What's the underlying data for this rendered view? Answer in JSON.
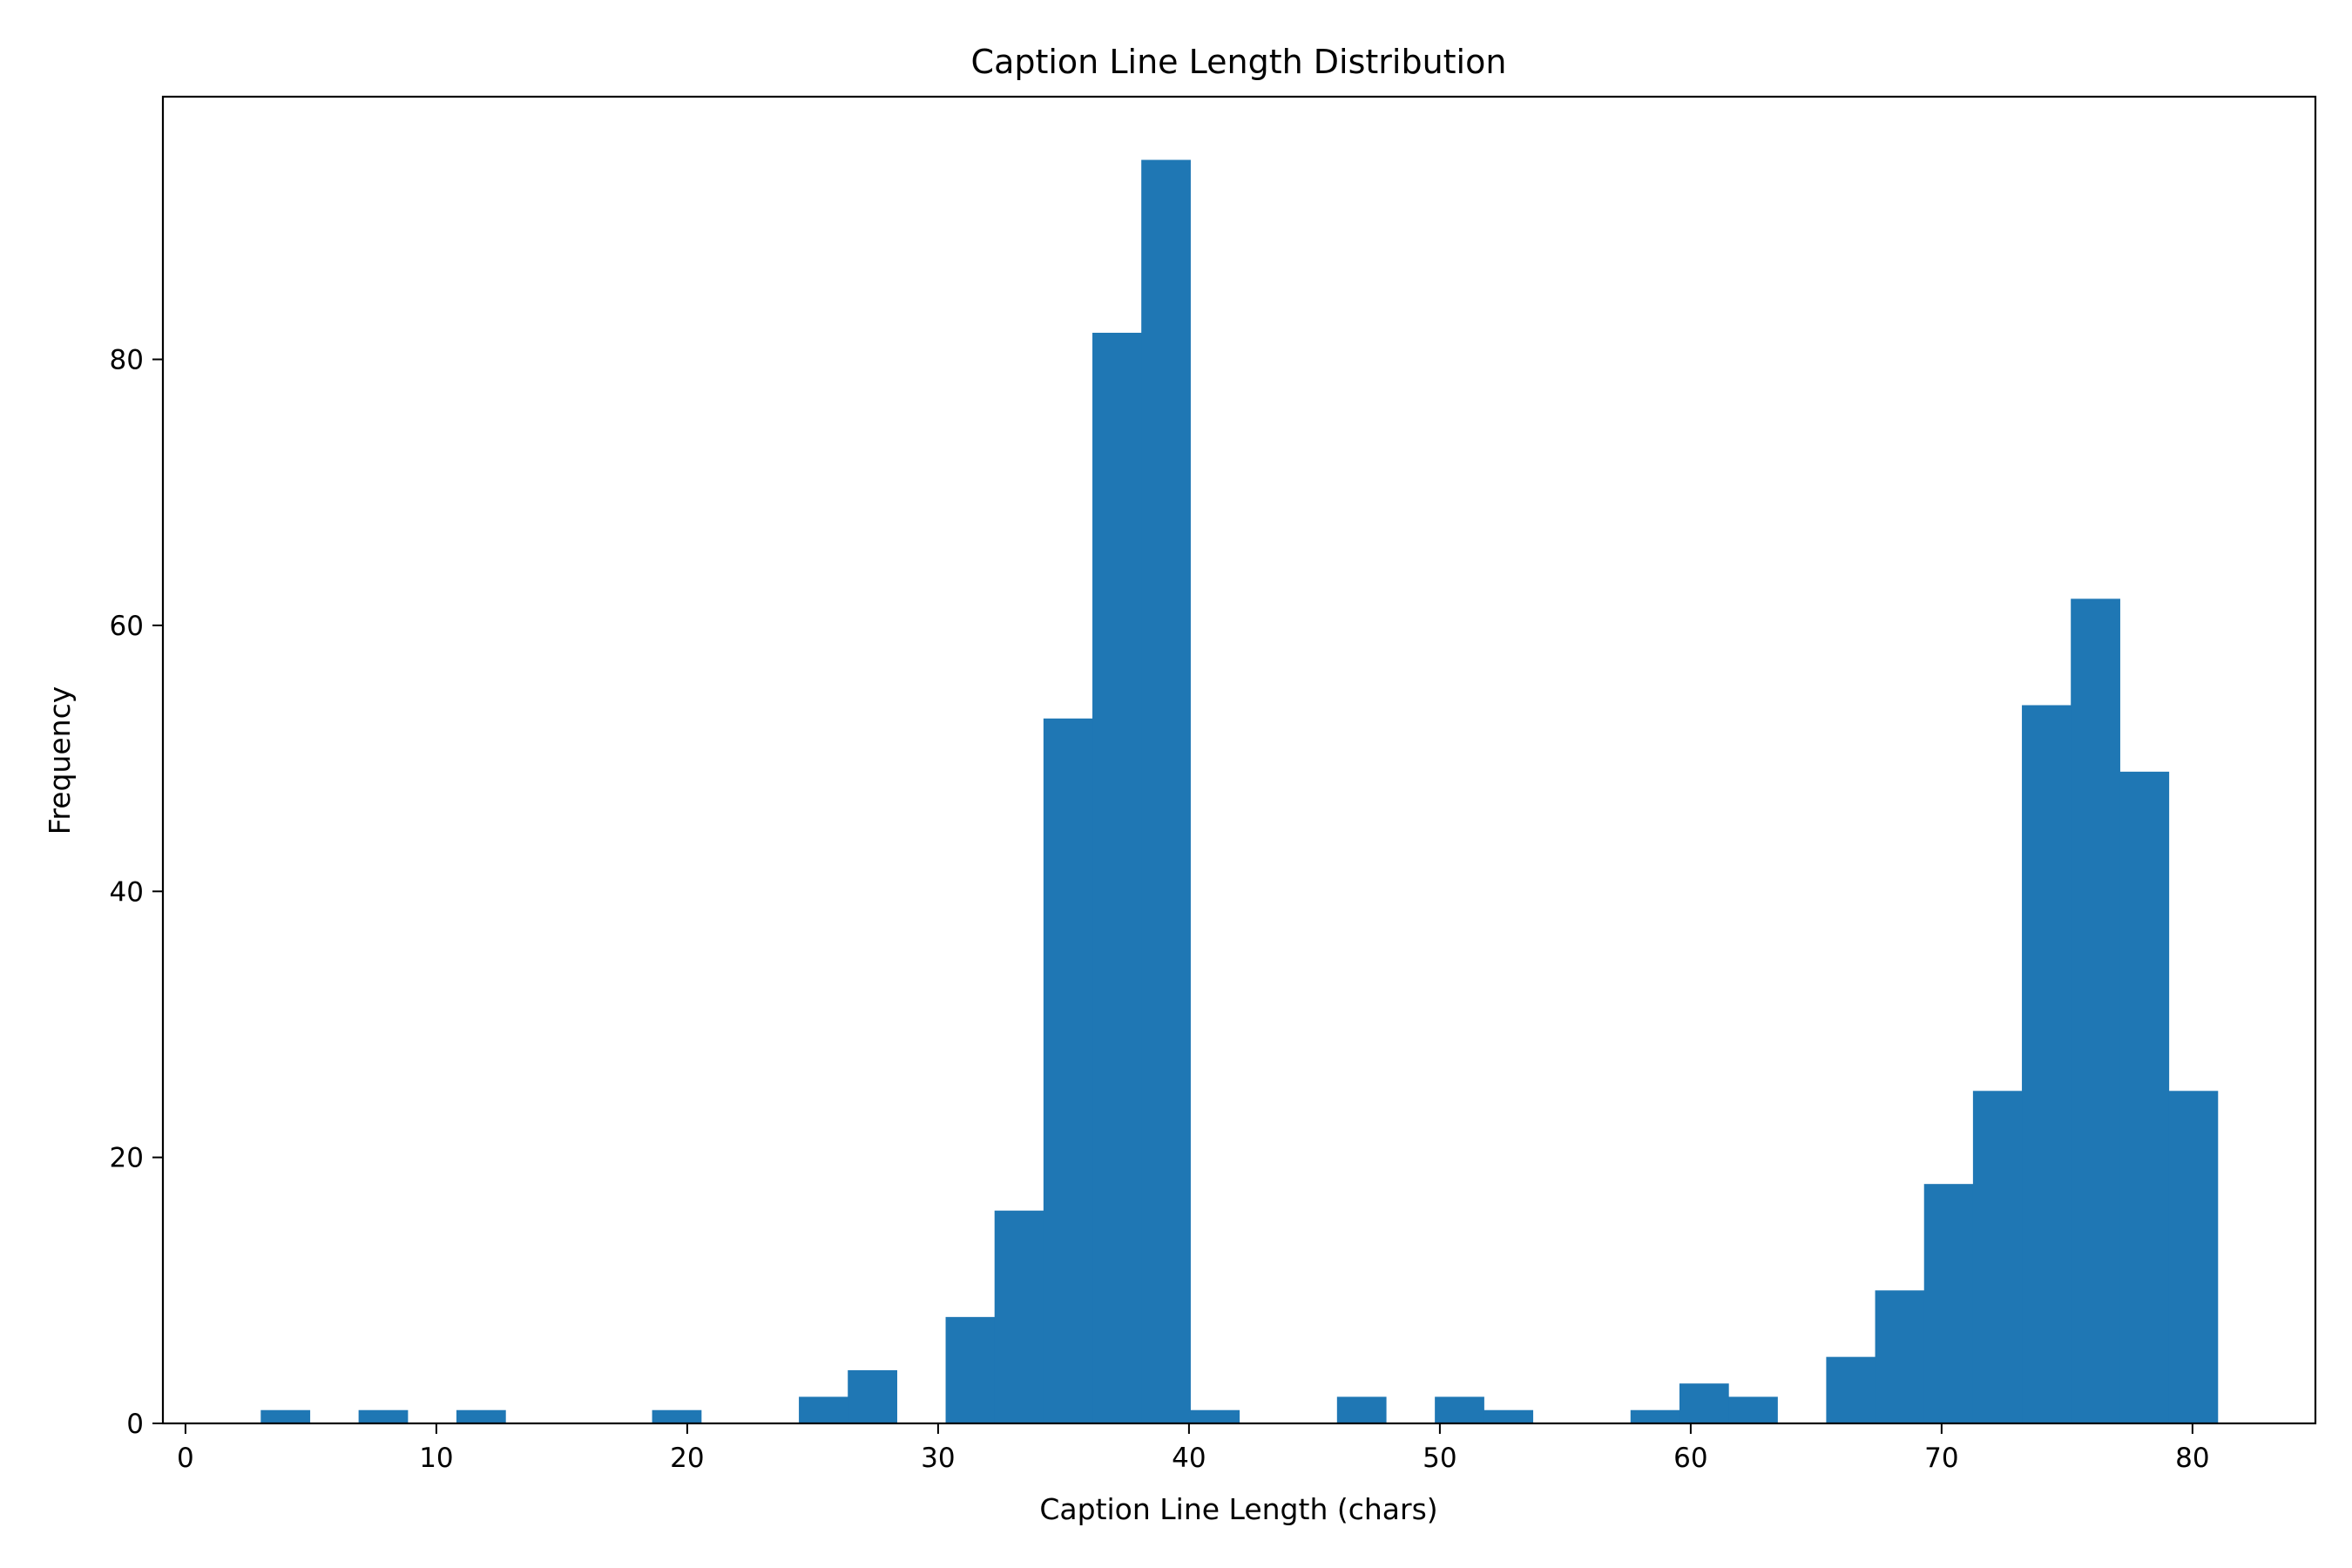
{
  "chart_data": {
    "type": "bar",
    "title": "Caption Line Length Distribution",
    "xlabel": "Caption Line Length (chars)",
    "ylabel": "Frequency",
    "xlim": [
      -0.9,
      84.9
    ],
    "ylim": [
      0,
      99.75
    ],
    "xticks": [
      0,
      10,
      20,
      30,
      40,
      50,
      60,
      70,
      80
    ],
    "yticks": [
      0,
      20,
      40,
      60,
      80
    ],
    "grid": false,
    "bar_color": "#1f77b4",
    "bins": [
      {
        "x0": 3.0,
        "x1": 4.95,
        "value": 1
      },
      {
        "x0": 4.95,
        "x1": 6.9,
        "value": 0
      },
      {
        "x0": 6.9,
        "x1": 8.85,
        "value": 1
      },
      {
        "x0": 8.85,
        "x1": 10.8,
        "value": 0
      },
      {
        "x0": 10.8,
        "x1": 12.75,
        "value": 1
      },
      {
        "x0": 12.75,
        "x1": 14.7,
        "value": 0
      },
      {
        "x0": 14.7,
        "x1": 16.65,
        "value": 0
      },
      {
        "x0": 16.65,
        "x1": 18.6,
        "value": 0
      },
      {
        "x0": 18.6,
        "x1": 20.55,
        "value": 1
      },
      {
        "x0": 20.55,
        "x1": 22.5,
        "value": 0
      },
      {
        "x0": 22.5,
        "x1": 24.45,
        "value": 0
      },
      {
        "x0": 24.45,
        "x1": 26.4,
        "value": 2
      },
      {
        "x0": 26.4,
        "x1": 28.35,
        "value": 4
      },
      {
        "x0": 28.35,
        "x1": 30.3,
        "value": 0
      },
      {
        "x0": 30.3,
        "x1": 32.25,
        "value": 8
      },
      {
        "x0": 32.25,
        "x1": 34.2,
        "value": 16
      },
      {
        "x0": 34.2,
        "x1": 36.15,
        "value": 53
      },
      {
        "x0": 36.15,
        "x1": 38.1,
        "value": 82
      },
      {
        "x0": 38.1,
        "x1": 40.05,
        "value": 95
      },
      {
        "x0": 40.05,
        "x1": 42.0,
        "value": 1
      },
      {
        "x0": 42.0,
        "x1": 43.95,
        "value": 0
      },
      {
        "x0": 43.95,
        "x1": 45.9,
        "value": 0
      },
      {
        "x0": 45.9,
        "x1": 47.85,
        "value": 2
      },
      {
        "x0": 47.85,
        "x1": 49.8,
        "value": 0
      },
      {
        "x0": 49.8,
        "x1": 51.75,
        "value": 2
      },
      {
        "x0": 51.75,
        "x1": 53.7,
        "value": 1
      },
      {
        "x0": 53.7,
        "x1": 55.65,
        "value": 0
      },
      {
        "x0": 55.65,
        "x1": 57.6,
        "value": 0
      },
      {
        "x0": 57.6,
        "x1": 59.55,
        "value": 1
      },
      {
        "x0": 59.55,
        "x1": 61.5,
        "value": 3
      },
      {
        "x0": 61.5,
        "x1": 63.45,
        "value": 2
      },
      {
        "x0": 63.45,
        "x1": 65.4,
        "value": 0
      },
      {
        "x0": 65.4,
        "x1": 67.35,
        "value": 5
      },
      {
        "x0": 67.35,
        "x1": 69.3,
        "value": 10
      },
      {
        "x0": 69.3,
        "x1": 71.25,
        "value": 18
      },
      {
        "x0": 71.25,
        "x1": 73.2,
        "value": 25
      },
      {
        "x0": 73.2,
        "x1": 75.15,
        "value": 54
      },
      {
        "x0": 75.15,
        "x1": 77.1,
        "value": 62
      },
      {
        "x0": 77.1,
        "x1": 79.05,
        "value": 49
      },
      {
        "x0": 79.05,
        "x1": 81.0,
        "value": 25
      }
    ]
  }
}
